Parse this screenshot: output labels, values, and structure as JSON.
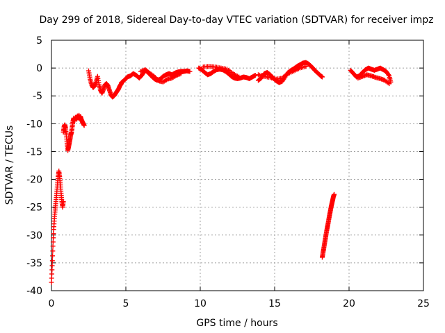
{
  "chart_data": {
    "type": "scatter",
    "title": "Day 299 of 2018, Sidereal Day-to-day VTEC variation (SDTVAR) for receiver impz",
    "xlabel": "GPS time / hours",
    "ylabel": "SDTVAR / TECUs",
    "xlim": [
      0,
      25
    ],
    "ylim": [
      -40,
      5
    ],
    "xticks": [
      0,
      5,
      10,
      15,
      20,
      25
    ],
    "yticks": [
      -40,
      -35,
      -30,
      -25,
      -20,
      -15,
      -10,
      -5,
      0,
      5
    ],
    "grid": true,
    "marker": "plus",
    "color": "#ff0000",
    "series": [
      {
        "name": "SDTVAR",
        "segments": [
          {
            "x": [
              0.0,
              0.05,
              0.1,
              0.15,
              0.2,
              0.25,
              0.3,
              0.35,
              0.4,
              0.45,
              0.5,
              0.55,
              0.6,
              0.65,
              0.7,
              0.75,
              0.8
            ],
            "y": [
              -38.5,
              -35.5,
              -32,
              -29,
              -27,
              -25.5,
              -24,
              -22.5,
              -21,
              -19.5,
              -18.5,
              -19.5,
              -21,
              -22.5,
              -24,
              -25,
              -24
            ]
          },
          {
            "x": [
              0.8,
              0.85,
              0.9,
              0.95,
              1.0,
              1.05,
              1.1,
              1.15,
              1.2,
              1.25,
              1.3,
              1.35,
              1.4,
              1.45,
              1.5,
              1.55,
              1.6,
              1.65,
              1.7,
              1.75,
              1.8,
              1.85,
              1.9,
              1.95,
              2.0,
              2.05,
              2.1,
              2.15,
              2.2
            ],
            "y": [
              -11.5,
              -10.5,
              -10.2,
              -10.8,
              -12,
              -13.5,
              -14.8,
              -14.2,
              -13.5,
              -12.8,
              -12,
              -11.5,
              -10.5,
              -9.5,
              -9,
              -9.5,
              -9,
              -8.8,
              -9.2,
              -8.6,
              -9,
              -8.5,
              -9,
              -8.7,
              -9.2,
              -9.5,
              -9.8,
              -10,
              -10.3
            ]
          },
          {
            "x": [
              2.5,
              2.6,
              2.7,
              2.8,
              2.9,
              3.0,
              3.1,
              3.2,
              3.3,
              3.4,
              3.5,
              3.6,
              3.7,
              3.8,
              3.9,
              4.0,
              4.1,
              4.2,
              4.3,
              4.4,
              4.5,
              4.6,
              4.7
            ],
            "y": [
              -0.5,
              -2,
              -3,
              -3.5,
              -3.2,
              -2.5,
              -1.5,
              -3,
              -4,
              -4.5,
              -3.8,
              -3,
              -2.8,
              -3.2,
              -4,
              -4.8,
              -5.2,
              -5,
              -4.6,
              -4.2,
              -3.8,
              -3.2,
              -2.8
            ]
          },
          {
            "x": [
              4.7,
              4.9,
              5.1,
              5.3,
              5.5,
              5.7,
              5.9,
              6.1,
              6.3,
              6.5,
              6.7,
              6.9,
              7.1,
              7.3,
              7.5,
              7.7,
              7.9,
              8.1,
              8.3,
              8.5,
              8.7,
              8.9,
              9.1,
              9.3
            ],
            "y": [
              -2.6,
              -2.2,
              -1.6,
              -1.4,
              -1.0,
              -1.3,
              -1.8,
              -1.2,
              -0.4,
              -0.8,
              -1.4,
              -1.9,
              -2.2,
              -2.0,
              -1.5,
              -1.2,
              -1.0,
              -1.2,
              -0.9,
              -0.7,
              -0.6,
              -0.6,
              -0.5,
              -0.6
            ]
          },
          {
            "x": [
              6.0,
              6.3,
              6.6,
              6.9,
              7.2,
              7.5,
              7.8,
              8.1,
              8.4,
              8.7
            ],
            "y": [
              -0.6,
              -0.3,
              -0.9,
              -1.5,
              -2.3,
              -2.5,
              -2.0,
              -1.8,
              -1.3,
              -1.0
            ]
          },
          {
            "x": [
              9.9,
              10.1,
              10.3,
              10.5,
              10.7,
              10.9,
              11.1,
              11.3,
              11.5,
              11.7,
              11.9,
              12.1,
              12.3,
              12.5,
              12.7,
              12.9,
              13.1,
              13.3,
              13.5,
              13.7
            ],
            "y": [
              0.0,
              -0.3,
              -0.8,
              -1.2,
              -1.0,
              -0.6,
              -0.3,
              -0.2,
              -0.3,
              -0.6,
              -1.0,
              -1.5,
              -1.8,
              -1.9,
              -1.8,
              -1.6,
              -1.7,
              -1.9,
              -1.6,
              -1.3
            ]
          },
          {
            "x": [
              10.2,
              10.6,
              11.0,
              11.4,
              11.8,
              12.2,
              12.6
            ],
            "y": [
              0.2,
              0.3,
              0.2,
              0.0,
              -0.2,
              -1.0,
              -1.6
            ]
          },
          {
            "x": [
              13.9,
              14.1,
              14.3,
              14.5,
              14.7,
              14.9,
              15.1,
              15.3,
              15.5,
              15.7,
              15.9,
              16.1,
              16.3,
              16.5,
              16.7,
              16.9,
              17.1,
              17.3,
              17.5,
              17.7,
              17.9,
              18.1,
              18.2
            ],
            "y": [
              -2.2,
              -1.8,
              -1.0,
              -0.8,
              -1.2,
              -1.8,
              -2.3,
              -2.6,
              -2.4,
              -1.6,
              -0.8,
              -0.4,
              -0.1,
              0.3,
              0.6,
              0.9,
              1.0,
              0.7,
              0.2,
              -0.4,
              -0.9,
              -1.4,
              -1.6
            ]
          },
          {
            "x": [
              13.9,
              14.3,
              14.7,
              15.1,
              15.5,
              15.9,
              16.3,
              16.7,
              17.1
            ],
            "y": [
              -1.2,
              -1.5,
              -1.7,
              -2.0,
              -1.8,
              -1.0,
              -0.5,
              0.0,
              0.3
            ]
          },
          {
            "x": [
              18.2,
              18.25,
              18.3,
              18.35,
              18.4,
              18.45,
              18.5,
              18.55,
              18.6,
              18.65,
              18.7,
              18.75,
              18.8,
              18.85,
              18.9,
              18.95,
              19.0
            ],
            "y": [
              -34.0,
              -33.2,
              -32.4,
              -31.6,
              -30.8,
              -30.0,
              -29.2,
              -28.5,
              -27.8,
              -27.0,
              -26.3,
              -25.6,
              -24.9,
              -24.3,
              -23.7,
              -23.1,
              -22.7
            ]
          },
          {
            "x": [
              20.1,
              20.3,
              20.5,
              20.7,
              20.9,
              21.1,
              21.3,
              21.5,
              21.7,
              21.9,
              22.1,
              22.3,
              22.5,
              22.7,
              22.8
            ],
            "y": [
              -0.4,
              -1.0,
              -1.6,
              -1.4,
              -0.8,
              -0.3,
              0.0,
              -0.2,
              -0.4,
              -0.2,
              0.0,
              -0.3,
              -0.6,
              -1.4,
              -2.5
            ]
          },
          {
            "x": [
              20.6,
              20.9,
              21.2,
              21.5,
              21.8,
              22.1,
              22.4,
              22.7
            ],
            "y": [
              -1.8,
              -1.5,
              -1.2,
              -1.4,
              -1.7,
              -1.9,
              -2.2,
              -2.8
            ]
          }
        ]
      }
    ]
  }
}
